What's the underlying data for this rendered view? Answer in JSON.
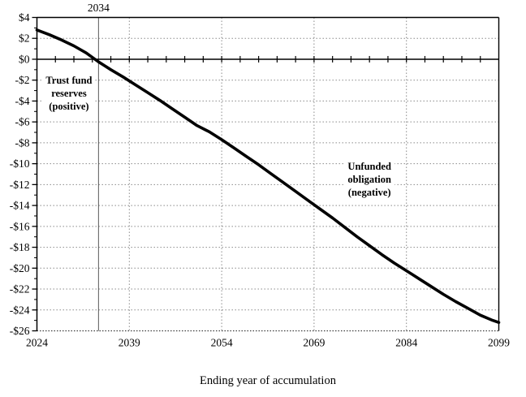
{
  "chart_data": {
    "type": "line",
    "title": "",
    "xlabel": "Ending year of accumulation",
    "ylabel": "",
    "xlim": [
      2024,
      2099
    ],
    "ylim": [
      -26,
      4
    ],
    "grid": "dotted",
    "legend": "none",
    "xticks": [
      {
        "v": 2024,
        "label": "2024"
      },
      {
        "v": 2039,
        "label": "2039"
      },
      {
        "v": 2054,
        "label": "2054"
      },
      {
        "v": 2069,
        "label": "2069"
      },
      {
        "v": 2084,
        "label": "2084"
      },
      {
        "v": 2099,
        "label": "2099"
      }
    ],
    "yticks": [
      {
        "v": 4,
        "label": "$4"
      },
      {
        "v": 2,
        "label": "$2"
      },
      {
        "v": 0,
        "label": "$0"
      },
      {
        "v": -2,
        "label": "-$2"
      },
      {
        "v": -4,
        "label": "-$4"
      },
      {
        "v": -6,
        "label": "-$6"
      },
      {
        "v": -8,
        "label": "-$8"
      },
      {
        "v": -10,
        "label": "-$10"
      },
      {
        "v": -12,
        "label": "-$12"
      },
      {
        "v": -14,
        "label": "-$14"
      },
      {
        "v": -16,
        "label": "-$16"
      },
      {
        "v": -18,
        "label": "-$18"
      },
      {
        "v": -20,
        "label": "-$20"
      },
      {
        "v": -22,
        "label": "-$22"
      },
      {
        "v": -24,
        "label": "-$24"
      },
      {
        "v": -26,
        "label": "-$26"
      }
    ],
    "ytick_minor_step": 1,
    "xtick_minor_step_on_zero_axis": 3,
    "marker_line": {
      "x": 2034,
      "label": "2034"
    },
    "series": [
      {
        "x": [
          2024,
          2026,
          2028,
          2030,
          2032,
          2034,
          2036,
          2038,
          2040,
          2042,
          2044,
          2046,
          2048,
          2050,
          2052,
          2054,
          2056,
          2058,
          2060,
          2062,
          2064,
          2066,
          2068,
          2070,
          2072,
          2074,
          2076,
          2078,
          2080,
          2082,
          2084,
          2086,
          2088,
          2090,
          2092,
          2094,
          2096,
          2098,
          2099
        ],
        "y": [
          2.8,
          2.35,
          1.85,
          1.28,
          0.6,
          -0.25,
          -1.0,
          -1.7,
          -2.45,
          -3.2,
          -3.95,
          -4.75,
          -5.55,
          -6.35,
          -6.95,
          -7.7,
          -8.5,
          -9.3,
          -10.1,
          -10.95,
          -11.8,
          -12.65,
          -13.5,
          -14.35,
          -15.2,
          -16.1,
          -17.0,
          -17.85,
          -18.7,
          -19.5,
          -20.25,
          -21.0,
          -21.75,
          -22.5,
          -23.2,
          -23.85,
          -24.5,
          -25.0,
          -25.2
        ]
      }
    ],
    "annotations": [
      {
        "lines": [
          "Trust fund",
          "reserves",
          "(positive)"
        ],
        "x": 2029.2,
        "y": -3.3
      },
      {
        "lines": [
          "Unfunded",
          "obligation",
          "(negative)"
        ],
        "x": 2078.0,
        "y": -11.5
      }
    ],
    "colors": {
      "curve": "#000000",
      "axis": "#000000",
      "gridline": "#8a8a8a",
      "bottom_border": "#3c3c3c",
      "marker_line": "#5a5a5a",
      "background": "#ffffff"
    }
  }
}
